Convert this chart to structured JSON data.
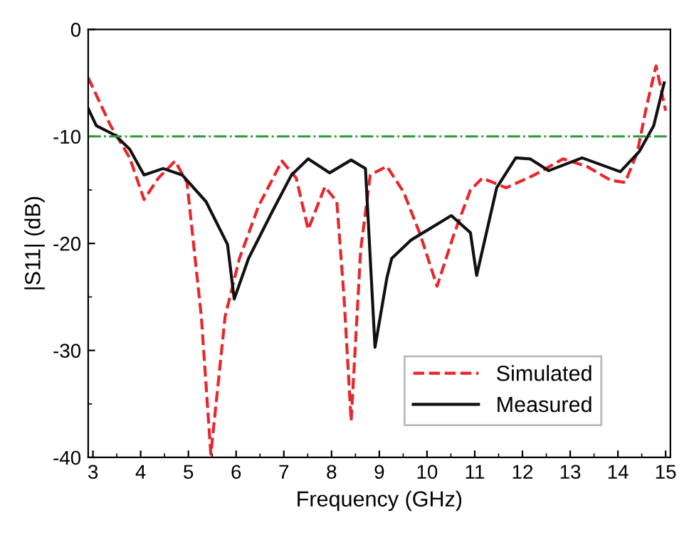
{
  "chart_data": {
    "type": "line",
    "xlabel": "Frequency (GHz)",
    "ylabel": "|S11| (dB)",
    "xlim": [
      2.9,
      15.1
    ],
    "ylim": [
      -40,
      0
    ],
    "xticks": [
      3,
      4,
      5,
      6,
      7,
      8,
      9,
      10,
      11,
      12,
      13,
      14,
      15
    ],
    "yticks": [
      -40,
      -30,
      -20,
      -10,
      0
    ],
    "grid": false,
    "legend": "bottom right",
    "marker": "none",
    "series": [
      {
        "name": "Simulated",
        "color": "#e8262b",
        "line_style": "dashed",
        "x": [
          2.9,
          3.37,
          3.77,
          4.07,
          4.37,
          4.72,
          4.97,
          5.27,
          5.47,
          5.77,
          6.07,
          6.47,
          6.96,
          7.26,
          7.51,
          7.86,
          8.11,
          8.26,
          8.41,
          8.61,
          8.81,
          9.16,
          9.51,
          9.86,
          10.21,
          10.56,
          10.91,
          11.16,
          11.66,
          12.25,
          12.85,
          13.35,
          13.85,
          14.15,
          14.4,
          14.6,
          14.8,
          15.0
        ],
        "values": [
          -4.5,
          -9.0,
          -12.0,
          -15.9,
          -13.9,
          -12.3,
          -14.3,
          -26.8,
          -39.7,
          -26.8,
          -21.4,
          -16.5,
          -12.3,
          -13.9,
          -18.7,
          -14.7,
          -16.1,
          -25,
          -36.6,
          -20.6,
          -13.6,
          -12.8,
          -15.2,
          -19.2,
          -24.0,
          -19.2,
          -15.0,
          -13.9,
          -14.8,
          -13.6,
          -12.1,
          -12.8,
          -14.1,
          -14.3,
          -11.6,
          -7.2,
          -3.4,
          -7.6
        ]
      },
      {
        "name": "Measured",
        "color": "#111111",
        "line_style": "solid",
        "x": [
          2.9,
          3.07,
          3.47,
          3.77,
          4.07,
          4.47,
          4.87,
          5.37,
          5.82,
          5.96,
          6.26,
          6.76,
          7.16,
          7.51,
          7.96,
          8.41,
          8.71,
          8.91,
          9.16,
          9.26,
          9.66,
          10.51,
          10.91,
          11.04,
          11.46,
          11.86,
          12.16,
          12.55,
          13.25,
          14.05,
          14.45,
          14.75,
          14.97
        ],
        "values": [
          -7.4,
          -9.0,
          -9.9,
          -11.2,
          -13.6,
          -13.0,
          -13.6,
          -16.1,
          -20.1,
          -25.2,
          -21.4,
          -17.0,
          -13.6,
          -12.1,
          -13.4,
          -12.2,
          -13.0,
          -29.7,
          -23.2,
          -21.4,
          -19.7,
          -17.4,
          -19.0,
          -23.0,
          -14.8,
          -12.0,
          -12.1,
          -13.2,
          -12.0,
          -13.3,
          -11.4,
          -9.0,
          -5.0
        ]
      }
    ],
    "ref_lines": [
      {
        "axis": "y",
        "value": -10,
        "color": "#2a9a3a",
        "line_style": "dashdot"
      }
    ]
  }
}
